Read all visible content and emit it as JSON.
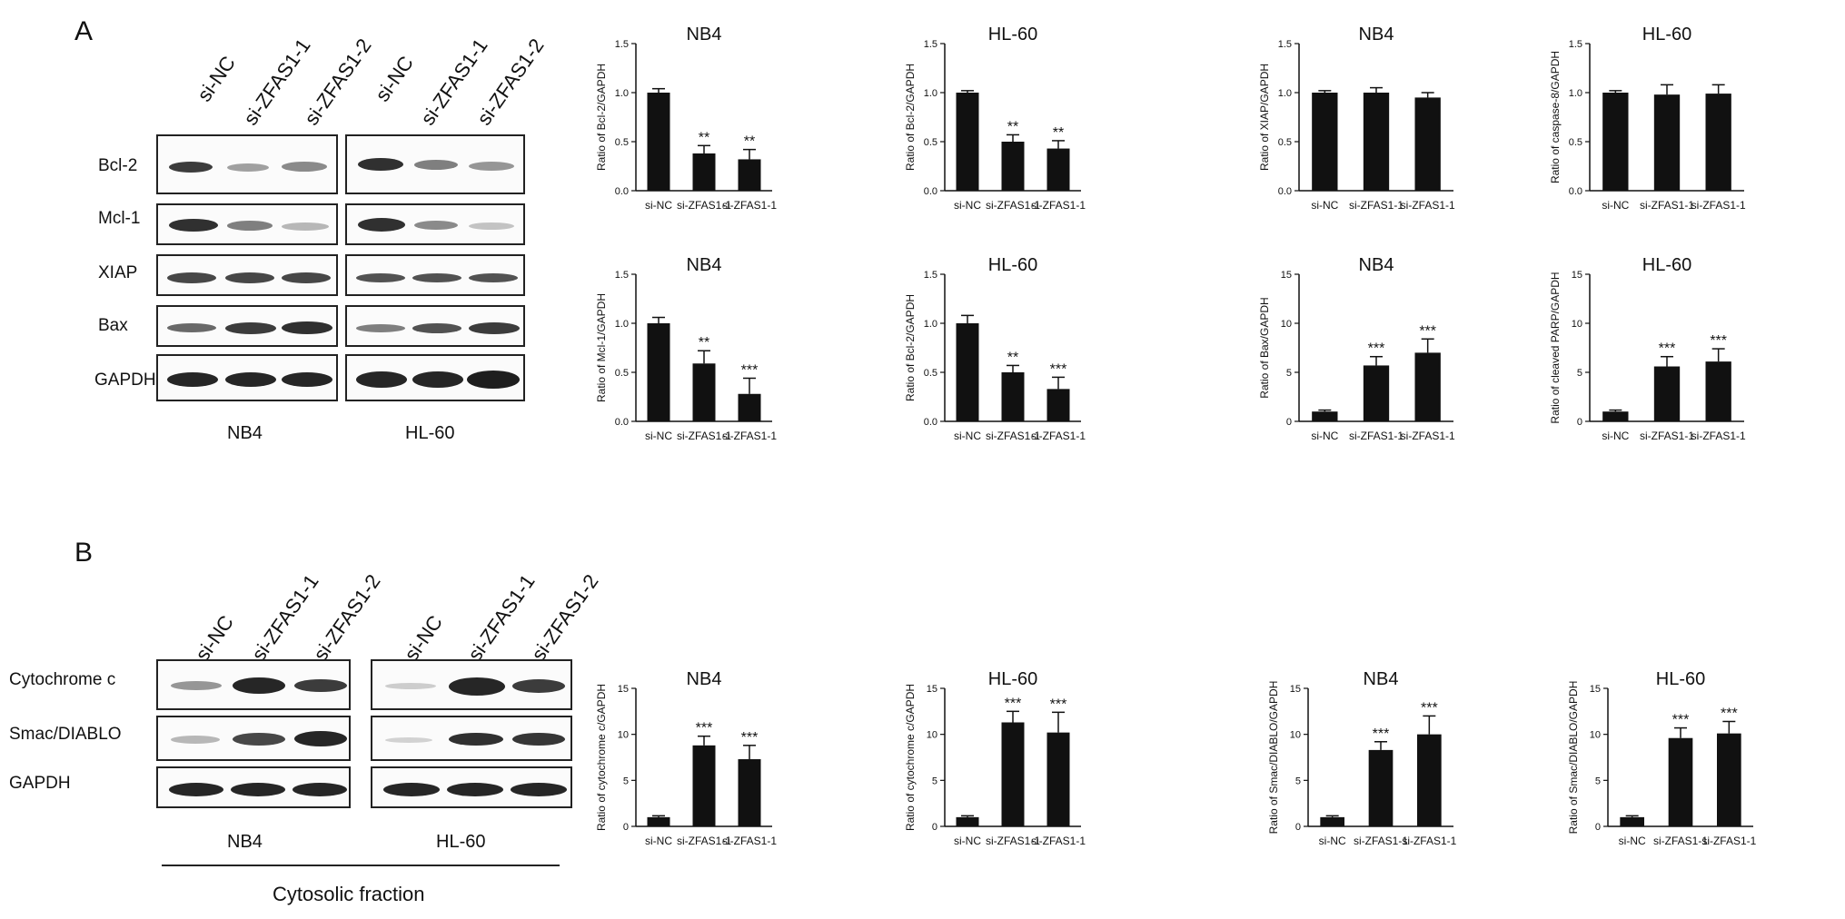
{
  "panels": [
    {
      "letter": "A",
      "lanes": [
        "si-NC",
        "si-ZFAS1-1",
        "si-ZFAS1-2"
      ],
      "rows": [
        "Bcl-2",
        "Mcl-1",
        "XIAP",
        "Bax",
        "GAPDH"
      ],
      "cells": [
        "NB4",
        "HL-60"
      ]
    },
    {
      "letter": "B",
      "lanes": [
        "si-NC",
        "si-ZFAS1-1",
        "si-ZFAS1-2"
      ],
      "rows": [
        "Cytochrome c",
        "Smac/DIABLO",
        "GAPDH"
      ],
      "cells": [
        "NB4",
        "HL-60"
      ],
      "fraction": "Cytosolic fraction"
    }
  ],
  "chart_data": [
    {
      "type": "bar",
      "title": "NB4",
      "ylabel": "Ratio of Bcl-2/GAPDH",
      "categories": [
        "si-NC",
        "si-ZFAS1-1",
        "si-ZFAS1-1"
      ],
      "values": [
        1.0,
        0.38,
        0.32
      ],
      "errors": [
        0.04,
        0.08,
        0.1
      ],
      "significance": [
        "",
        "**",
        "**"
      ],
      "ylim": [
        0,
        1.5
      ],
      "yticks": [
        "0.0",
        "0.5",
        "1.0",
        "1.5"
      ]
    },
    {
      "type": "bar",
      "title": "HL-60",
      "ylabel": "Ratio of Bcl-2/GAPDH",
      "categories": [
        "si-NC",
        "si-ZFAS1-1",
        "si-ZFAS1-1"
      ],
      "values": [
        1.0,
        0.5,
        0.43
      ],
      "errors": [
        0.02,
        0.07,
        0.08
      ],
      "significance": [
        "",
        "**",
        "**"
      ],
      "ylim": [
        0,
        1.5
      ],
      "yticks": [
        "0.0",
        "0.5",
        "1.0",
        "1.5"
      ]
    },
    {
      "type": "bar",
      "title": "NB4",
      "ylabel": "Ratio of XIAP/GAPDH",
      "categories": [
        "si-NC",
        "si-ZFAS1-1",
        "si-ZFAS1-1"
      ],
      "values": [
        1.0,
        1.0,
        0.95
      ],
      "errors": [
        0.02,
        0.05,
        0.05
      ],
      "significance": [
        "",
        "",
        ""
      ],
      "ylim": [
        0,
        1.5
      ],
      "yticks": [
        "0.0",
        "0.5",
        "1.0",
        "1.5"
      ]
    },
    {
      "type": "bar",
      "title": "HL-60",
      "ylabel": "Ratio of caspase-8/GAPDH",
      "categories": [
        "si-NC",
        "si-ZFAS1-1",
        "si-ZFAS1-1"
      ],
      "values": [
        1.0,
        0.98,
        0.99
      ],
      "errors": [
        0.02,
        0.1,
        0.09
      ],
      "significance": [
        "",
        "",
        ""
      ],
      "ylim": [
        0,
        1.5
      ],
      "yticks": [
        "0.0",
        "0.5",
        "1.0",
        "1.5"
      ]
    },
    {
      "type": "bar",
      "title": "NB4",
      "ylabel": "Ratio of Mcl-1/GAPDH",
      "categories": [
        "si-NC",
        "si-ZFAS1-1",
        "si-ZFAS1-1"
      ],
      "values": [
        1.0,
        0.59,
        0.28
      ],
      "errors": [
        0.06,
        0.13,
        0.16
      ],
      "significance": [
        "",
        "**",
        "***"
      ],
      "ylim": [
        0,
        1.5
      ],
      "yticks": [
        "0.0",
        "0.5",
        "1.0",
        "1.5"
      ]
    },
    {
      "type": "bar",
      "title": "HL-60",
      "ylabel": "Ratio of Bcl-2/GAPDH",
      "categories": [
        "si-NC",
        "si-ZFAS1-1",
        "si-ZFAS1-1"
      ],
      "values": [
        1.0,
        0.5,
        0.33
      ],
      "errors": [
        0.08,
        0.07,
        0.12
      ],
      "significance": [
        "",
        "**",
        "***"
      ],
      "ylim": [
        0,
        1.5
      ],
      "yticks": [
        "0.0",
        "0.5",
        "1.0",
        "1.5"
      ]
    },
    {
      "type": "bar",
      "title": "NB4",
      "ylabel": "Ratio of Bax/GAPDH",
      "categories": [
        "si-NC",
        "si-ZFAS1-1",
        "si-ZFAS1-1"
      ],
      "values": [
        1.0,
        5.7,
        7.0
      ],
      "errors": [
        0.15,
        0.9,
        1.4
      ],
      "significance": [
        "",
        "***",
        "***"
      ],
      "ylim": [
        0,
        15
      ],
      "yticks": [
        "0",
        "5",
        "10",
        "15"
      ]
    },
    {
      "type": "bar",
      "title": "HL-60",
      "ylabel": "Ratio of cleaved PARP/GAPDH",
      "categories": [
        "si-NC",
        "si-ZFAS1-1",
        "si-ZFAS1-1"
      ],
      "values": [
        1.0,
        5.6,
        6.1
      ],
      "errors": [
        0.15,
        1.0,
        1.3
      ],
      "significance": [
        "",
        "***",
        "***"
      ],
      "ylim": [
        0,
        15
      ],
      "yticks": [
        "0",
        "5",
        "10",
        "15"
      ]
    },
    {
      "type": "bar",
      "title": "NB4",
      "ylabel": "Ratio of cytochrome c/GAPDH",
      "categories": [
        "si-NC",
        "si-ZFAS1-1",
        "si-ZFAS1-1"
      ],
      "values": [
        1.0,
        8.8,
        7.3
      ],
      "errors": [
        0.15,
        1.0,
        1.5
      ],
      "significance": [
        "",
        "***",
        "***"
      ],
      "ylim": [
        0,
        15
      ],
      "yticks": [
        "0",
        "5",
        "10",
        "15"
      ]
    },
    {
      "type": "bar",
      "title": "HL-60",
      "ylabel": "Ratio of cytochrome c/GAPDH",
      "categories": [
        "si-NC",
        "si-ZFAS1-1",
        "si-ZFAS1-1"
      ],
      "values": [
        1.0,
        11.3,
        10.2
      ],
      "errors": [
        0.15,
        1.2,
        2.2
      ],
      "significance": [
        "",
        "***",
        "***"
      ],
      "ylim": [
        0,
        15
      ],
      "yticks": [
        "0",
        "5",
        "10",
        "15"
      ]
    },
    {
      "type": "bar",
      "title": "NB4",
      "ylabel": "Ratio of Smac/DIABLO/GAPDH",
      "categories": [
        "si-NC",
        "si-ZFAS1-1",
        "si-ZFAS1-1"
      ],
      "values": [
        1.0,
        8.3,
        10.0
      ],
      "errors": [
        0.15,
        0.9,
        2.0
      ],
      "significance": [
        "",
        "***",
        "***"
      ],
      "ylim": [
        0,
        15
      ],
      "yticks": [
        "0",
        "5",
        "10",
        "15"
      ]
    },
    {
      "type": "bar",
      "title": "HL-60",
      "ylabel": "Ratio of Smac/DIABLO/GAPDH",
      "categories": [
        "si-NC",
        "si-ZFAS1-1",
        "si-ZFAS1-1"
      ],
      "values": [
        1.0,
        9.6,
        10.1
      ],
      "errors": [
        0.15,
        1.1,
        1.3
      ],
      "significance": [
        "",
        "***",
        "***"
      ],
      "ylim": [
        0,
        15
      ],
      "yticks": [
        "0",
        "5",
        "10",
        "15"
      ]
    }
  ]
}
